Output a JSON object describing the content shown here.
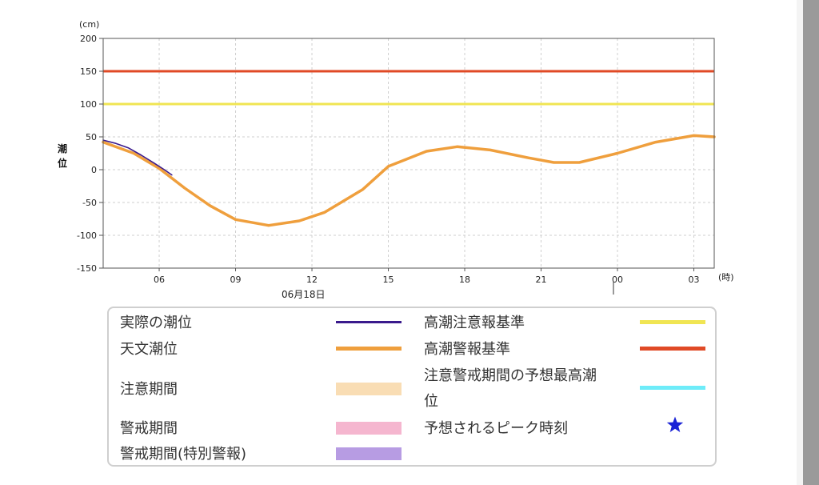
{
  "chart_data": {
    "type": "line",
    "y_unit": "(cm)",
    "x_unit": "(時)",
    "ylabel": "潮位",
    "ylim": [
      -150,
      200
    ],
    "yticks": [
      200,
      150,
      100,
      50,
      0,
      -50,
      -100,
      -150
    ],
    "xlim_hours": [
      3.8,
      27.8
    ],
    "xticks": [
      {
        "hour": 6,
        "label": "06"
      },
      {
        "hour": 9,
        "label": "09"
      },
      {
        "hour": 12,
        "label": "12"
      },
      {
        "hour": 15,
        "label": "15"
      },
      {
        "hour": 18,
        "label": "18"
      },
      {
        "hour": 21,
        "label": "21"
      },
      {
        "hour": 24,
        "label": "00"
      },
      {
        "hour": 27,
        "label": "03"
      }
    ],
    "date_label": "06月18日",
    "grid": true,
    "thresholds": [
      {
        "name": "高潮警報基準",
        "value": 150,
        "color": "#e04a26"
      },
      {
        "name": "高潮注意報基準",
        "value": 100,
        "color": "#f0e553"
      }
    ],
    "series": [
      {
        "name": "天文潮位",
        "color": "#ef9f3d",
        "x": [
          3.8,
          5.0,
          6.0,
          7.0,
          8.0,
          9.0,
          10.3,
          11.5,
          12.5,
          14.0,
          15.0,
          16.5,
          17.7,
          19.0,
          20.5,
          21.5,
          22.5,
          24.0,
          25.5,
          27.0,
          27.8
        ],
        "y": [
          42,
          25,
          2,
          -28,
          -55,
          -76,
          -85,
          -78,
          -65,
          -30,
          5,
          28,
          35,
          30,
          18,
          11,
          11,
          25,
          42,
          52,
          50
        ]
      },
      {
        "name": "実際の潮位",
        "color": "#3a1a8c",
        "x": [
          3.8,
          4.3,
          4.8,
          5.3,
          5.8,
          6.2,
          6.5
        ],
        "y": [
          45,
          40,
          33,
          22,
          10,
          0,
          -8
        ]
      }
    ]
  },
  "legend": {
    "items": [
      {
        "label": "実際の潮位",
        "color": "#3a1a8c",
        "kind": "line"
      },
      {
        "label": "天文潮位",
        "color": "#ef9f3d",
        "kind": "line"
      },
      {
        "label": "注意期間",
        "color": "#f9ddb4",
        "kind": "band"
      },
      {
        "label": "警戒期間",
        "color": "#f5b6cf",
        "kind": "band"
      },
      {
        "label": "警戒期間(特別警報)",
        "color": "#b79ce3",
        "kind": "band"
      },
      {
        "label": "高潮注意報基準",
        "color": "#f0e553",
        "kind": "line"
      },
      {
        "label": "高潮警報基準",
        "color": "#e04a26",
        "kind": "line"
      },
      {
        "label_line1": "注意警戒期間の予想最高潮",
        "label_line2": "位",
        "color": "#6eecf9",
        "kind": "line"
      },
      {
        "label": "予想されるピーク時刻",
        "color": "#1a23d6",
        "kind": "star"
      }
    ]
  }
}
